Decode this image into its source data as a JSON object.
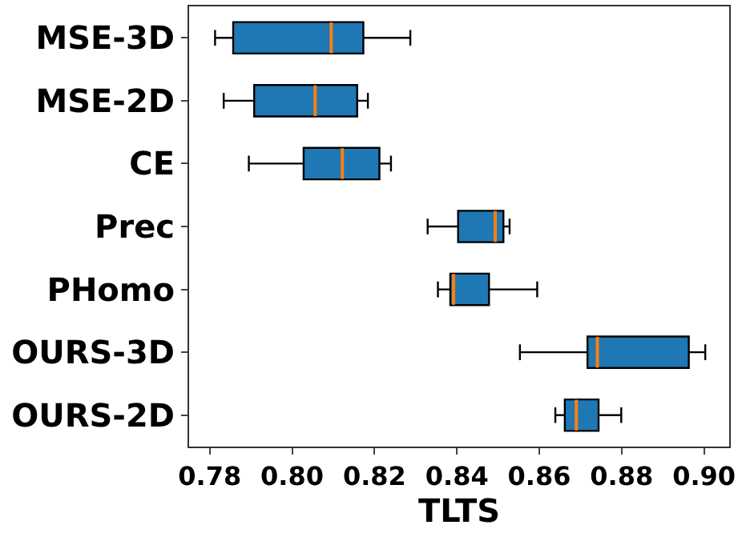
{
  "chart_data": {
    "type": "box",
    "orientation": "horizontal",
    "xlabel": "TLTS",
    "categories": [
      "MSE-3D",
      "MSE-2D",
      "CE",
      "Prec",
      "PHomo",
      "OURS-3D",
      "OURS-2D"
    ],
    "color": "#1f77b4",
    "boxes": [
      {
        "low": 0.7813,
        "q1": 0.7857,
        "median": 0.8095,
        "q3": 0.8173,
        "high": 0.8287
      },
      {
        "low": 0.7834,
        "q1": 0.7908,
        "median": 0.8056,
        "q3": 0.8158,
        "high": 0.8184
      },
      {
        "low": 0.7895,
        "q1": 0.8028,
        "median": 0.8122,
        "q3": 0.8212,
        "high": 0.824
      },
      {
        "low": 0.8329,
        "q1": 0.8403,
        "median": 0.8493,
        "q3": 0.8513,
        "high": 0.8528
      },
      {
        "low": 0.8354,
        "q1": 0.8384,
        "median": 0.8392,
        "q3": 0.8478,
        "high": 0.8595
      },
      {
        "low": 0.8553,
        "q1": 0.8717,
        "median": 0.8741,
        "q3": 0.8963,
        "high": 0.9003
      },
      {
        "low": 0.8639,
        "q1": 0.8662,
        "median": 0.869,
        "q3": 0.8744,
        "high": 0.8799
      }
    ],
    "xlim": [
      0.775,
      0.9061
    ],
    "xticks": [
      {
        "value": 0.78,
        "label": "0.78"
      },
      {
        "value": 0.8,
        "label": "0.80"
      },
      {
        "value": 0.82,
        "label": "0.82"
      },
      {
        "value": 0.84,
        "label": "0.84"
      },
      {
        "value": 0.86,
        "label": "0.86"
      },
      {
        "value": 0.88,
        "label": "0.88"
      },
      {
        "value": 0.9,
        "label": "0.90"
      }
    ],
    "grid": false,
    "legend": false
  }
}
